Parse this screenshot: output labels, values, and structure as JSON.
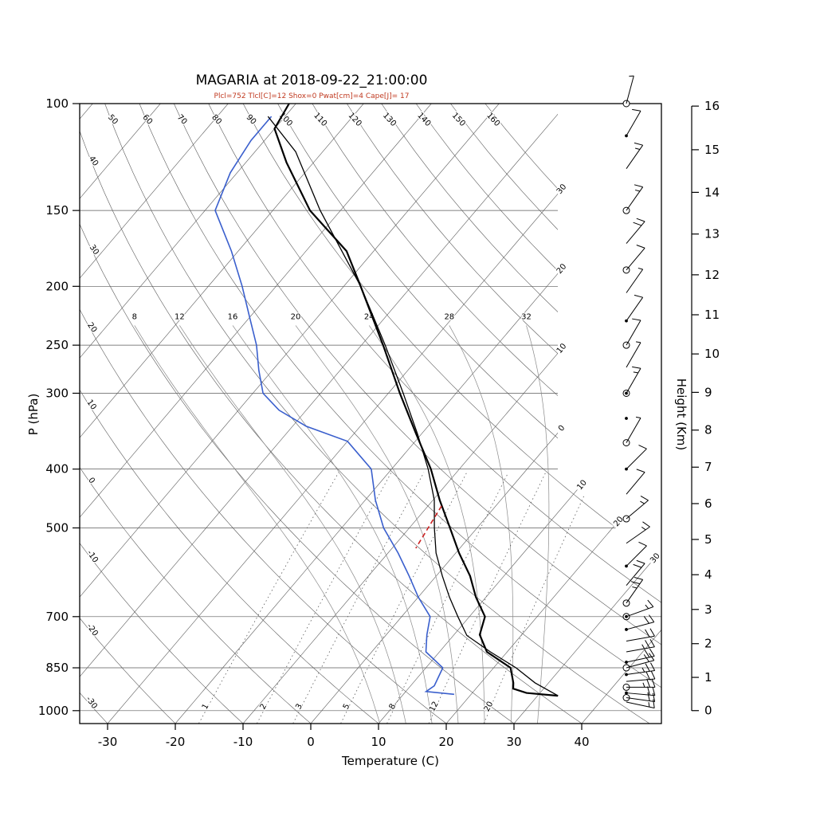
{
  "title": "MAGARIA at 2018-09-22_21:00:00",
  "subtitle": "Plcl=752 Tlcl[C]=12 Shox=0 Pwat[cm]=4 Cape[J]= 17",
  "colors": {
    "temperature": "#000000",
    "dewpoint": "#3a5fcd",
    "parcel": "#000000",
    "cape_segment": "#cc2222",
    "subtitle_red": "#c03a20",
    "grid": "#5a5a5a",
    "moist_grid": "#8a8a8a"
  },
  "chart_data": {
    "type": "line",
    "diagram": "skew-t-log-p-sounding",
    "x_axis": {
      "label": "Temperature (C)",
      "ticks": [
        -30,
        -20,
        -10,
        0,
        10,
        20,
        30,
        40
      ]
    },
    "y_axis": {
      "label": "P (hPa)",
      "scale": "log",
      "range": [
        100,
        1050
      ],
      "ticks": [
        100,
        150,
        200,
        250,
        300,
        400,
        500,
        700,
        850,
        1000
      ]
    },
    "secondary_y_axis": {
      "label": "Height (Km)",
      "ticks": [
        0,
        1,
        2,
        3,
        4,
        5,
        6,
        7,
        8,
        9,
        10,
        11,
        12,
        13,
        14,
        15,
        16
      ]
    },
    "series": [
      {
        "name": "temperature",
        "style": "solid",
        "width": 2.2,
        "points": [
          [
            945,
            33
          ],
          [
            935,
            28
          ],
          [
            920,
            25.5
          ],
          [
            900,
            24.8
          ],
          [
            850,
            22.5
          ],
          [
            800,
            17
          ],
          [
            750,
            13.8
          ],
          [
            700,
            12.3
          ],
          [
            650,
            8.5
          ],
          [
            600,
            5
          ],
          [
            550,
            0.5
          ],
          [
            500,
            -4
          ],
          [
            450,
            -9
          ],
          [
            400,
            -14.2
          ],
          [
            350,
            -20.8
          ],
          [
            300,
            -28.3
          ],
          [
            250,
            -36.8
          ],
          [
            200,
            -47.5
          ],
          [
            175,
            -54
          ],
          [
            150,
            -64.5
          ],
          [
            125,
            -74
          ],
          [
            110,
            -80
          ],
          [
            100,
            -81
          ]
        ]
      },
      {
        "name": "dewpoint",
        "style": "solid",
        "width": 1.6,
        "points": [
          [
            940,
            17.5
          ],
          [
            930,
            13
          ],
          [
            910,
            13.5
          ],
          [
            850,
            12.5
          ],
          [
            800,
            8
          ],
          [
            750,
            6
          ],
          [
            700,
            4.2
          ],
          [
            650,
            0
          ],
          [
            600,
            -4
          ],
          [
            550,
            -8.5
          ],
          [
            500,
            -13.8
          ],
          [
            450,
            -18.5
          ],
          [
            400,
            -23
          ],
          [
            360,
            -30
          ],
          [
            340,
            -38
          ],
          [
            320,
            -44
          ],
          [
            300,
            -48.5
          ],
          [
            275,
            -52
          ],
          [
            250,
            -55.5
          ],
          [
            225,
            -60
          ],
          [
            200,
            -65
          ],
          [
            175,
            -71
          ],
          [
            150,
            -78.5
          ],
          [
            130,
            -81
          ],
          [
            115,
            -82
          ],
          [
            105,
            -82
          ]
        ]
      },
      {
        "name": "parcel",
        "style": "solid",
        "width": 1.3,
        "points": [
          [
            945,
            33
          ],
          [
            900,
            28
          ],
          [
            850,
            23.3
          ],
          [
            800,
            17.5
          ],
          [
            752,
            12
          ],
          [
            700,
            8.3
          ],
          [
            650,
            4.6
          ],
          [
            600,
            0.9
          ],
          [
            550,
            -2.9
          ],
          [
            500,
            -6.3
          ],
          [
            450,
            -9.8
          ],
          [
            400,
            -14.6
          ],
          [
            350,
            -20.6
          ],
          [
            300,
            -27.8
          ],
          [
            250,
            -36.5
          ],
          [
            200,
            -47.5
          ],
          [
            150,
            -63
          ],
          [
            120,
            -74
          ],
          [
            105,
            -82.5
          ]
        ]
      },
      {
        "name": "cape-segment",
        "style": "dashed",
        "width": 1.6,
        "points": [
          [
            460,
            -8
          ],
          [
            540,
            -6.5
          ]
        ]
      }
    ],
    "background": {
      "isotherms_c": {
        "start": -120,
        "end": 40,
        "step": 10
      },
      "dry_adiabats_c": {
        "start": -30,
        "end": 160,
        "step": 10
      },
      "moist_adiabats_c": [
        8,
        12,
        16,
        20,
        24,
        28,
        32
      ],
      "mixing_ratio_g_kg": [
        1,
        2,
        3,
        5,
        8,
        12,
        20
      ],
      "pressure_lines_hpa": [
        100,
        150,
        200,
        250,
        300,
        400,
        500,
        700,
        850,
        1000
      ],
      "top_adiabat_labels": [
        50,
        60,
        70,
        80,
        90,
        100,
        110,
        120,
        130,
        140,
        150,
        160
      ],
      "left_adiabat_labels": [
        40,
        30,
        20,
        10,
        0,
        -10,
        -20,
        -30
      ],
      "right_isotherm_labels_upper": [
        "30",
        "20",
        "10",
        "0"
      ],
      "right_isotherm_labels_upper_t": [
        -30,
        -20,
        -10,
        0
      ],
      "right_isotherm_labels_lower": [
        "10",
        "20",
        "30"
      ],
      "right_isotherm_labels_lower_t": [
        10,
        20,
        30
      ]
    },
    "wind_barbs": [
      {
        "p": 100,
        "marker": "circle",
        "spd": 5,
        "dir": 75
      },
      {
        "p": 113,
        "marker": "dot",
        "spd": 10,
        "dir": 60
      },
      {
        "p": 128,
        "marker": "none",
        "spd": 15,
        "dir": 55
      },
      {
        "p": 150,
        "marker": "circle",
        "spd": 15,
        "dir": 55
      },
      {
        "p": 170,
        "marker": "none",
        "spd": 20,
        "dir": 50
      },
      {
        "p": 188,
        "marker": "circle",
        "spd": 10,
        "dir": 50
      },
      {
        "p": 205,
        "marker": "none",
        "spd": 5,
        "dir": 55
      },
      {
        "p": 228,
        "marker": "dot",
        "spd": 10,
        "dir": 55
      },
      {
        "p": 250,
        "marker": "circle",
        "spd": 10,
        "dir": 60
      },
      {
        "p": 272,
        "marker": "none",
        "spd": 5,
        "dir": 60
      },
      {
        "p": 300,
        "marker": "circle-dot",
        "spd": 15,
        "dir": 60
      },
      {
        "p": 330,
        "marker": "dot",
        "spd": 0,
        "dir": 0
      },
      {
        "p": 362,
        "marker": "circle",
        "spd": 5,
        "dir": 60
      },
      {
        "p": 400,
        "marker": "dot",
        "spd": 10,
        "dir": 45
      },
      {
        "p": 440,
        "marker": "none",
        "spd": 10,
        "dir": 50
      },
      {
        "p": 483,
        "marker": "circle",
        "spd": 15,
        "dir": 40
      },
      {
        "p": 530,
        "marker": "none",
        "spd": 15,
        "dir": 35
      },
      {
        "p": 578,
        "marker": "dot",
        "spd": 10,
        "dir": 45
      },
      {
        "p": 622,
        "marker": "none",
        "spd": 20,
        "dir": 50
      },
      {
        "p": 665,
        "marker": "circle",
        "spd": 25,
        "dir": 55
      },
      {
        "p": 700,
        "marker": "circle-dot",
        "spd": 15,
        "dir": 20
      },
      {
        "p": 735,
        "marker": "dot",
        "spd": 20,
        "dir": 15
      },
      {
        "p": 768,
        "marker": "none",
        "spd": 20,
        "dir": 10
      },
      {
        "p": 800,
        "marker": "none",
        "spd": 25,
        "dir": 10
      },
      {
        "p": 832,
        "marker": "dot",
        "spd": 20,
        "dir": 12
      },
      {
        "p": 850,
        "marker": "circle",
        "spd": 20,
        "dir": 15
      },
      {
        "p": 872,
        "marker": "dot",
        "spd": 25,
        "dir": 8
      },
      {
        "p": 895,
        "marker": "none",
        "spd": 20,
        "dir": 5
      },
      {
        "p": 915,
        "marker": "circle",
        "spd": 25,
        "dir": 0
      },
      {
        "p": 935,
        "marker": "dot",
        "spd": 20,
        "dir": -5
      },
      {
        "p": 952,
        "marker": "circle",
        "spd": 20,
        "dir": -8
      },
      {
        "p": 968,
        "marker": "none",
        "spd": 15,
        "dir": -12
      }
    ]
  }
}
